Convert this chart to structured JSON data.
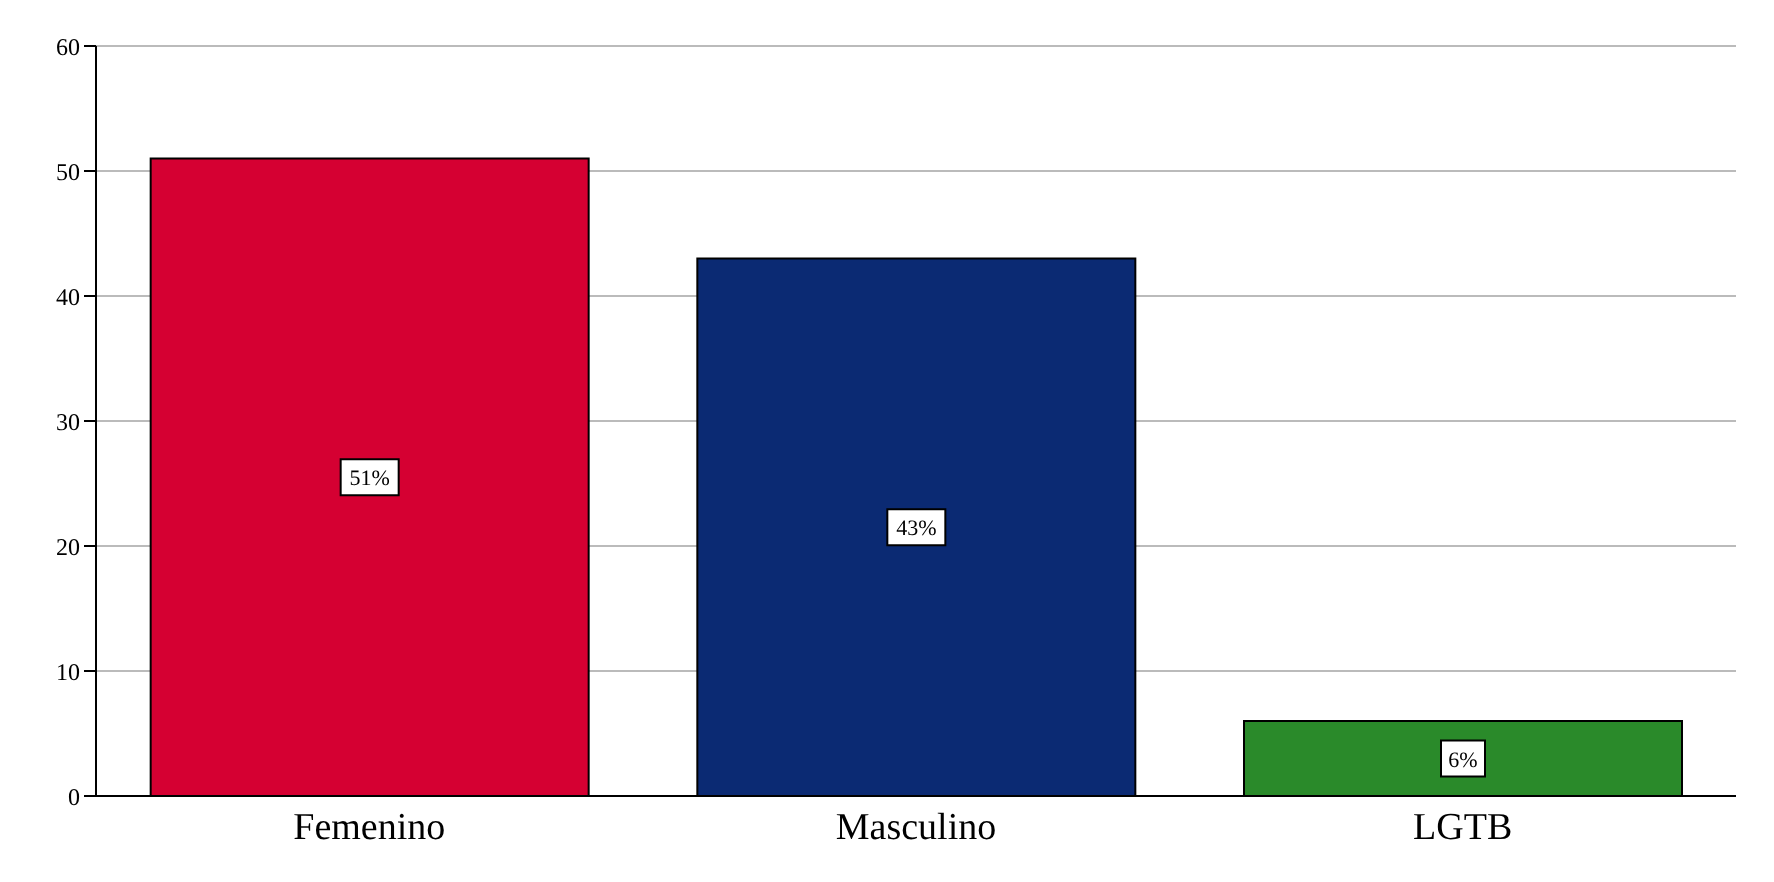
{
  "chart_data": {
    "type": "bar",
    "categories": [
      "Femenino",
      "Masculino",
      "LGTB"
    ],
    "values": [
      51,
      43,
      6
    ],
    "colors": [
      "#d50032",
      "#0b2a73",
      "#2a8a2a"
    ],
    "value_labels": [
      "51%",
      "43%",
      "6%"
    ],
    "ylim": [
      0,
      60
    ],
    "yticks": [
      0,
      10,
      20,
      30,
      40,
      50,
      60
    ],
    "grid": "y"
  }
}
